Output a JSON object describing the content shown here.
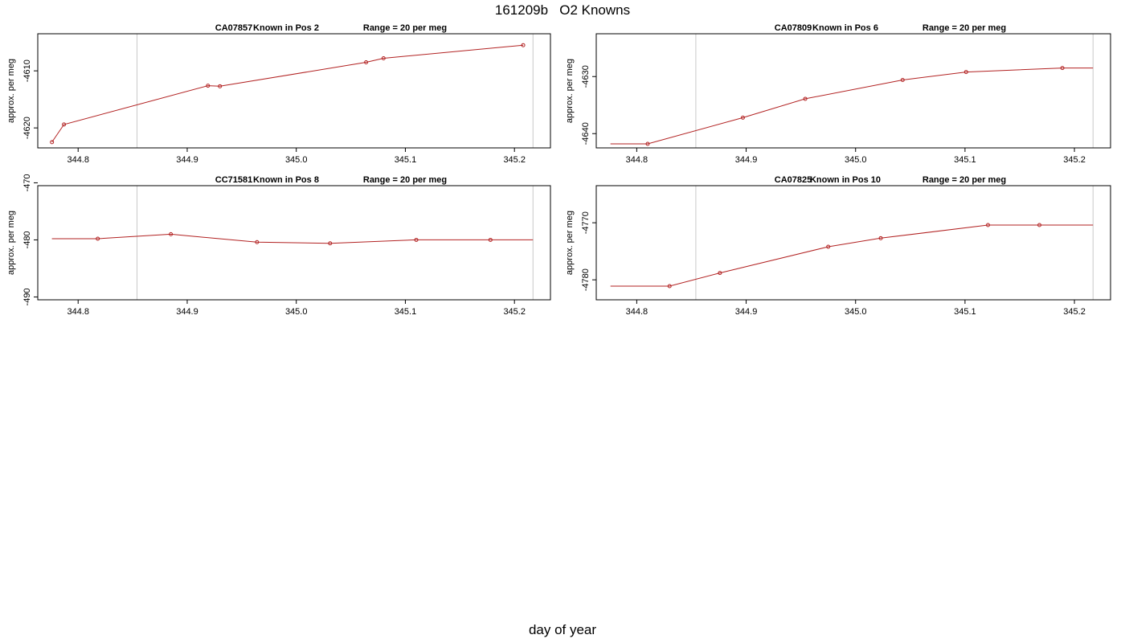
{
  "title": "161209b   O2 Knowns",
  "xlabel": "day of year",
  "colors": {
    "line": "#b22222",
    "marker": "#b22222",
    "refline": "#c8c8c8",
    "frame": "#000000"
  },
  "chart_data": [
    {
      "type": "line",
      "standard": "CA07857",
      "position_label": "Known in Pos 2",
      "range_label": "Range = 20 per meg",
      "ylabel": "approx. per meg",
      "xlim": [
        344.763,
        345.233
      ],
      "ylim": [
        -4623.5,
        -4603.5
      ],
      "xticks": [
        344.8,
        344.9,
        345.0,
        345.1,
        345.2
      ],
      "xtick_labels": [
        "344.8",
        "344.9",
        "345.0",
        "345.1",
        "345.2"
      ],
      "yticks": [
        -4620,
        -4610
      ],
      "ytick_labels": [
        "-4620",
        "-4610"
      ],
      "ref_x": [
        344.854,
        345.217
      ],
      "x": [
        344.776,
        344.787,
        344.919,
        344.93,
        345.064,
        345.08,
        345.208
      ],
      "y": [
        -4622.5,
        -4619.4,
        -4612.6,
        -4612.7,
        -4608.5,
        -4607.8,
        -4605.5
      ]
    },
    {
      "type": "line",
      "standard": "CA07809",
      "position_label": "Known in Pos 6",
      "range_label": "Range = 20 per meg",
      "ylabel": "approx. per meg",
      "xlim": [
        344.763,
        345.233
      ],
      "ylim": [
        -4642.5,
        -4622.5
      ],
      "xticks": [
        344.8,
        344.9,
        345.0,
        345.1,
        345.2
      ],
      "xtick_labels": [
        "344.8",
        "344.9",
        "345.0",
        "345.1",
        "345.2"
      ],
      "yticks": [
        -4640,
        -4630
      ],
      "ytick_labels": [
        "-4640",
        "-4630"
      ],
      "ref_x": [
        344.854,
        345.217
      ],
      "x": [
        344.776,
        344.81,
        344.897,
        344.954,
        345.043,
        345.101,
        345.189,
        345.217
      ],
      "y": [
        -4641.8,
        -4641.8,
        -4637.2,
        -4633.9,
        -4630.6,
        -4629.2,
        -4628.5,
        -4628.5
      ]
    },
    {
      "type": "line",
      "standard": "CC71581",
      "position_label": "Known in Pos 8",
      "range_label": "Range = 20 per meg",
      "ylabel": "approx. per meg",
      "xlim": [
        344.763,
        345.233
      ],
      "ylim": [
        -490.5,
        -470.5
      ],
      "xticks": [
        344.8,
        344.9,
        345.0,
        345.1,
        345.2
      ],
      "xtick_labels": [
        "344.8",
        "344.9",
        "345.0",
        "345.1",
        "345.2"
      ],
      "yticks": [
        -490,
        -480,
        -470
      ],
      "ytick_labels": [
        "-490",
        "-480",
        "-470"
      ],
      "ref_x": [
        344.854,
        345.217
      ],
      "x": [
        344.776,
        344.818,
        344.885,
        344.964,
        345.031,
        345.11,
        345.178,
        345.217
      ],
      "y": [
        -479.8,
        -479.8,
        -479.0,
        -480.4,
        -480.6,
        -480.0,
        -480.0,
        -480.0
      ]
    },
    {
      "type": "line",
      "standard": "CA07825",
      "position_label": "Known in Pos 10",
      "range_label": "Range = 20 per meg",
      "ylabel": "approx. per meg",
      "xlim": [
        344.763,
        345.233
      ],
      "ylim": [
        -4783.5,
        -4763.5
      ],
      "xticks": [
        344.8,
        344.9,
        345.0,
        345.1,
        345.2
      ],
      "xtick_labels": [
        "344.8",
        "344.9",
        "345.0",
        "345.1",
        "345.2"
      ],
      "yticks": [
        -4780,
        -4770
      ],
      "ytick_labels": [
        "-4780",
        "-4770"
      ],
      "ref_x": [
        344.854,
        345.217
      ],
      "x": [
        344.776,
        344.83,
        344.876,
        344.975,
        345.023,
        345.121,
        345.168,
        345.217
      ],
      "y": [
        -4781.1,
        -4781.1,
        -4778.8,
        -4774.2,
        -4772.7,
        -4770.4,
        -4770.4,
        -4770.4
      ]
    }
  ]
}
